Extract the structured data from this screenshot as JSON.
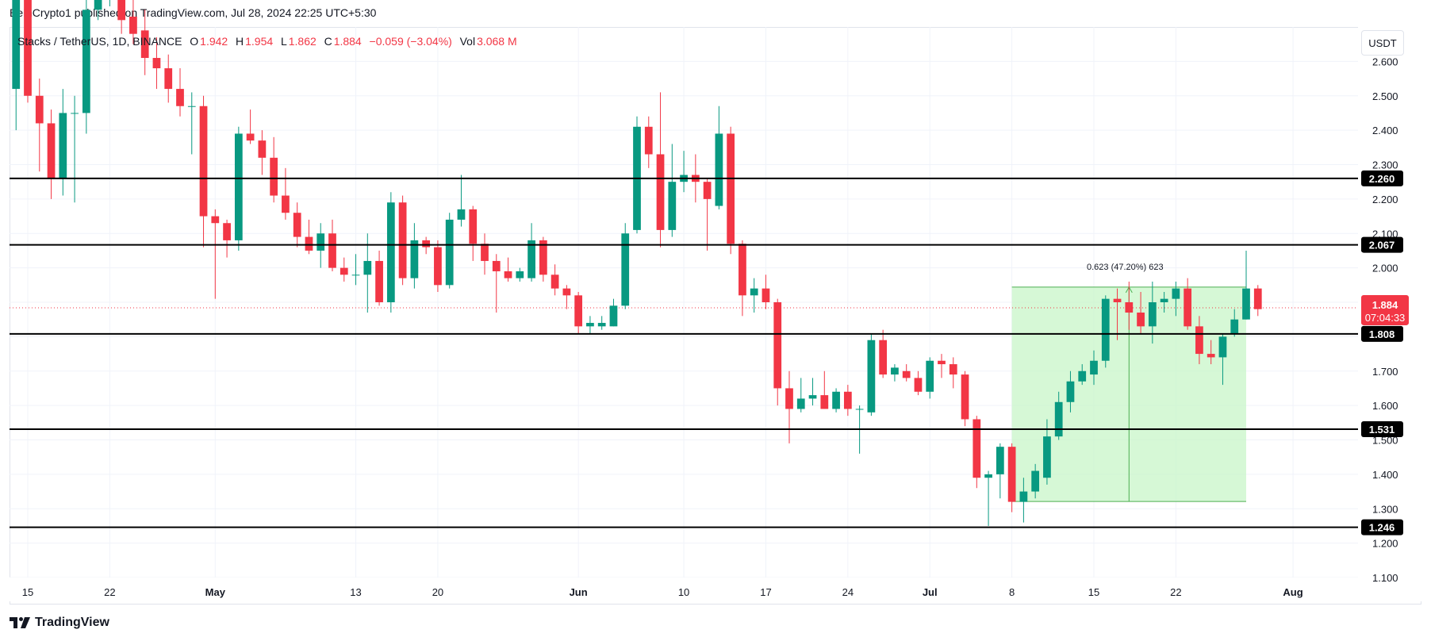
{
  "header": {
    "published": "BeInCrypto1 published on TradingView.com, Jul 28, 2024 22:25 UTC+5:30"
  },
  "legend": {
    "symbol": "Stacks / TetherUS, 1D, BINANCE",
    "o_label": "O",
    "o_value": "1.942",
    "h_label": "H",
    "h_value": "1.954",
    "l_label": "L",
    "l_value": "1.862",
    "c_label": "C",
    "c_value": "1.884",
    "change": "−0.059 (−3.04%)",
    "vol_label": "Vol",
    "vol_value": "3.068 M"
  },
  "currency_button": "USDT",
  "footer": {
    "brand": "TradingView"
  },
  "colors": {
    "up": "#089981",
    "down": "#f23645",
    "level": "#000000",
    "range_fill": "#c8f5c8",
    "range_stroke": "#4caf50",
    "grid": "#f0f3fa"
  },
  "chart_data": {
    "type": "candlestick",
    "ylim": [
      1.1,
      2.7
    ],
    "y_ticks": [
      "1.100",
      "1.200",
      "1.300",
      "1.400",
      "1.500",
      "1.600",
      "1.700",
      "1.800",
      "1.900",
      "2.000",
      "2.100",
      "2.200",
      "2.300",
      "2.400",
      "2.500",
      "2.600"
    ],
    "x_ticks": [
      {
        "label": "15",
        "date": "2024-04-15"
      },
      {
        "label": "22",
        "date": "2024-04-22"
      },
      {
        "label": "May",
        "date": "2024-05-01"
      },
      {
        "label": "13",
        "date": "2024-05-13"
      },
      {
        "label": "20",
        "date": "2024-05-20"
      },
      {
        "label": "Jun",
        "date": "2024-06-01"
      },
      {
        "label": "10",
        "date": "2024-06-10"
      },
      {
        "label": "17",
        "date": "2024-06-17"
      },
      {
        "label": "24",
        "date": "2024-06-24"
      },
      {
        "label": "Jul",
        "date": "2024-07-01"
      },
      {
        "label": "8",
        "date": "2024-07-08"
      },
      {
        "label": "15",
        "date": "2024-07-15"
      },
      {
        "label": "22",
        "date": "2024-07-22"
      },
      {
        "label": "Aug",
        "date": "2024-08-01"
      }
    ],
    "x_first_date": "2024-04-15",
    "x_last_date": "2024-07-28",
    "x_range_end": "2024-08-01",
    "candles": [
      {
        "date": "2024-04-14",
        "o": 2.52,
        "h": 2.78,
        "l": 2.4,
        "c": 2.78
      },
      {
        "date": "2024-04-15",
        "o": 2.8,
        "h": 2.85,
        "l": 2.48,
        "c": 2.5
      },
      {
        "date": "2024-04-16",
        "o": 2.5,
        "h": 2.55,
        "l": 2.28,
        "c": 2.42
      },
      {
        "date": "2024-04-17",
        "o": 2.42,
        "h": 2.46,
        "l": 2.2,
        "c": 2.26
      },
      {
        "date": "2024-04-18",
        "o": 2.26,
        "h": 2.52,
        "l": 2.21,
        "c": 2.45
      },
      {
        "date": "2024-04-19",
        "o": 2.45,
        "h": 2.5,
        "l": 2.19,
        "c": 2.45
      },
      {
        "date": "2024-04-20",
        "o": 2.45,
        "h": 2.8,
        "l": 2.39,
        "c": 2.75
      },
      {
        "date": "2024-04-21",
        "o": 2.75,
        "h": 2.9,
        "l": 2.72,
        "c": 2.84
      },
      {
        "date": "2024-04-22",
        "o": 2.84,
        "h": 2.88,
        "l": 2.76,
        "c": 2.85
      },
      {
        "date": "2024-04-23",
        "o": 2.86,
        "h": 2.9,
        "l": 2.68,
        "c": 2.72
      },
      {
        "date": "2024-04-24",
        "o": 2.73,
        "h": 2.86,
        "l": 2.65,
        "c": 2.68
      },
      {
        "date": "2024-04-25",
        "o": 2.69,
        "h": 2.75,
        "l": 2.56,
        "c": 2.61
      },
      {
        "date": "2024-04-26",
        "o": 2.61,
        "h": 2.67,
        "l": 2.52,
        "c": 2.58
      },
      {
        "date": "2024-04-27",
        "o": 2.58,
        "h": 2.62,
        "l": 2.48,
        "c": 2.52
      },
      {
        "date": "2024-04-28",
        "o": 2.52,
        "h": 2.58,
        "l": 2.44,
        "c": 2.47
      },
      {
        "date": "2024-04-29",
        "o": 2.47,
        "h": 2.51,
        "l": 2.33,
        "c": 2.47
      },
      {
        "date": "2024-04-30",
        "o": 2.47,
        "h": 2.5,
        "l": 2.06,
        "c": 2.15
      },
      {
        "date": "2024-05-01",
        "o": 2.15,
        "h": 2.17,
        "l": 1.91,
        "c": 2.13
      },
      {
        "date": "2024-05-02",
        "o": 2.13,
        "h": 2.14,
        "l": 2.03,
        "c": 2.08
      },
      {
        "date": "2024-05-03",
        "o": 2.08,
        "h": 2.41,
        "l": 2.05,
        "c": 2.39
      },
      {
        "date": "2024-05-04",
        "o": 2.39,
        "h": 2.46,
        "l": 2.36,
        "c": 2.37
      },
      {
        "date": "2024-05-05",
        "o": 2.37,
        "h": 2.4,
        "l": 2.27,
        "c": 2.32
      },
      {
        "date": "2024-05-06",
        "o": 2.32,
        "h": 2.38,
        "l": 2.19,
        "c": 2.21
      },
      {
        "date": "2024-05-07",
        "o": 2.21,
        "h": 2.29,
        "l": 2.14,
        "c": 2.16
      },
      {
        "date": "2024-05-08",
        "o": 2.16,
        "h": 2.19,
        "l": 2.06,
        "c": 2.09
      },
      {
        "date": "2024-05-09",
        "o": 2.09,
        "h": 2.14,
        "l": 2.04,
        "c": 2.05
      },
      {
        "date": "2024-05-10",
        "o": 2.05,
        "h": 2.13,
        "l": 2.0,
        "c": 2.1
      },
      {
        "date": "2024-05-11",
        "o": 2.1,
        "h": 2.14,
        "l": 1.99,
        "c": 2.0
      },
      {
        "date": "2024-05-12",
        "o": 2.0,
        "h": 2.03,
        "l": 1.96,
        "c": 1.98
      },
      {
        "date": "2024-05-13",
        "o": 1.98,
        "h": 2.04,
        "l": 1.95,
        "c": 1.98
      },
      {
        "date": "2024-05-14",
        "o": 1.98,
        "h": 2.1,
        "l": 1.87,
        "c": 2.02
      },
      {
        "date": "2024-05-15",
        "o": 2.02,
        "h": 2.05,
        "l": 1.89,
        "c": 1.9
      },
      {
        "date": "2024-05-16",
        "o": 1.9,
        "h": 2.22,
        "l": 1.87,
        "c": 2.19
      },
      {
        "date": "2024-05-17",
        "o": 2.19,
        "h": 2.21,
        "l": 1.95,
        "c": 1.97
      },
      {
        "date": "2024-05-18",
        "o": 1.97,
        "h": 2.13,
        "l": 1.94,
        "c": 2.08
      },
      {
        "date": "2024-05-19",
        "o": 2.08,
        "h": 2.09,
        "l": 2.04,
        "c": 2.06
      },
      {
        "date": "2024-05-20",
        "o": 2.06,
        "h": 2.08,
        "l": 1.93,
        "c": 1.95
      },
      {
        "date": "2024-05-21",
        "o": 1.95,
        "h": 2.16,
        "l": 1.94,
        "c": 2.14
      },
      {
        "date": "2024-05-22",
        "o": 2.14,
        "h": 2.27,
        "l": 2.12,
        "c": 2.17
      },
      {
        "date": "2024-05-23",
        "o": 2.17,
        "h": 2.18,
        "l": 2.02,
        "c": 2.07
      },
      {
        "date": "2024-05-24",
        "o": 2.07,
        "h": 2.1,
        "l": 1.98,
        "c": 2.02
      },
      {
        "date": "2024-05-25",
        "o": 2.02,
        "h": 2.04,
        "l": 1.87,
        "c": 1.99
      },
      {
        "date": "2024-05-26",
        "o": 1.99,
        "h": 2.03,
        "l": 1.96,
        "c": 1.97
      },
      {
        "date": "2024-05-27",
        "o": 1.97,
        "h": 2.0,
        "l": 1.96,
        "c": 1.99
      },
      {
        "date": "2024-05-28",
        "o": 1.97,
        "h": 2.13,
        "l": 1.96,
        "c": 2.08
      },
      {
        "date": "2024-05-29",
        "o": 2.08,
        "h": 2.09,
        "l": 1.96,
        "c": 1.98
      },
      {
        "date": "2024-05-30",
        "o": 1.98,
        "h": 2.01,
        "l": 1.92,
        "c": 1.94
      },
      {
        "date": "2024-05-31",
        "o": 1.94,
        "h": 1.95,
        "l": 1.88,
        "c": 1.92
      },
      {
        "date": "2024-06-01",
        "o": 1.92,
        "h": 1.93,
        "l": 1.81,
        "c": 1.83
      },
      {
        "date": "2024-06-02",
        "o": 1.83,
        "h": 1.86,
        "l": 1.81,
        "c": 1.84
      },
      {
        "date": "2024-06-03",
        "o": 1.83,
        "h": 1.86,
        "l": 1.82,
        "c": 1.84
      },
      {
        "date": "2024-06-04",
        "o": 1.83,
        "h": 1.91,
        "l": 1.83,
        "c": 1.89
      },
      {
        "date": "2024-06-05",
        "o": 1.89,
        "h": 2.13,
        "l": 1.88,
        "c": 2.1
      },
      {
        "date": "2024-06-06",
        "o": 2.11,
        "h": 2.44,
        "l": 2.1,
        "c": 2.41
      },
      {
        "date": "2024-06-07",
        "o": 2.41,
        "h": 2.44,
        "l": 2.29,
        "c": 2.33
      },
      {
        "date": "2024-06-08",
        "o": 2.33,
        "h": 2.51,
        "l": 2.06,
        "c": 2.11
      },
      {
        "date": "2024-06-09",
        "o": 2.11,
        "h": 2.36,
        "l": 2.09,
        "c": 2.25
      },
      {
        "date": "2024-06-10",
        "o": 2.25,
        "h": 2.34,
        "l": 2.22,
        "c": 2.27
      },
      {
        "date": "2024-06-11",
        "o": 2.27,
        "h": 2.33,
        "l": 2.19,
        "c": 2.25
      },
      {
        "date": "2024-06-12",
        "o": 2.25,
        "h": 2.26,
        "l": 2.05,
        "c": 2.2
      },
      {
        "date": "2024-06-13",
        "o": 2.18,
        "h": 2.47,
        "l": 2.17,
        "c": 2.39
      },
      {
        "date": "2024-06-14",
        "o": 2.39,
        "h": 2.41,
        "l": 2.04,
        "c": 2.07
      },
      {
        "date": "2024-06-15",
        "o": 2.07,
        "h": 2.08,
        "l": 1.86,
        "c": 1.92
      },
      {
        "date": "2024-06-16",
        "o": 1.92,
        "h": 1.97,
        "l": 1.87,
        "c": 1.94
      },
      {
        "date": "2024-06-17",
        "o": 1.94,
        "h": 1.98,
        "l": 1.88,
        "c": 1.9
      },
      {
        "date": "2024-06-18",
        "o": 1.9,
        "h": 1.91,
        "l": 1.6,
        "c": 1.65
      },
      {
        "date": "2024-06-19",
        "o": 1.65,
        "h": 1.7,
        "l": 1.49,
        "c": 1.59
      },
      {
        "date": "2024-06-20",
        "o": 1.59,
        "h": 1.68,
        "l": 1.58,
        "c": 1.62
      },
      {
        "date": "2024-06-21",
        "o": 1.62,
        "h": 1.68,
        "l": 1.6,
        "c": 1.63
      },
      {
        "date": "2024-06-22",
        "o": 1.63,
        "h": 1.7,
        "l": 1.59,
        "c": 1.59
      },
      {
        "date": "2024-06-23",
        "o": 1.59,
        "h": 1.65,
        "l": 1.58,
        "c": 1.64
      },
      {
        "date": "2024-06-24",
        "o": 1.64,
        "h": 1.66,
        "l": 1.57,
        "c": 1.59
      },
      {
        "date": "2024-06-25",
        "o": 1.59,
        "h": 1.6,
        "l": 1.46,
        "c": 1.59
      },
      {
        "date": "2024-06-26",
        "o": 1.58,
        "h": 1.81,
        "l": 1.57,
        "c": 1.79
      },
      {
        "date": "2024-06-27",
        "o": 1.79,
        "h": 1.82,
        "l": 1.68,
        "c": 1.69
      },
      {
        "date": "2024-06-28",
        "o": 1.69,
        "h": 1.72,
        "l": 1.67,
        "c": 1.71
      },
      {
        "date": "2024-06-29",
        "o": 1.7,
        "h": 1.72,
        "l": 1.67,
        "c": 1.68
      },
      {
        "date": "2024-06-30",
        "o": 1.68,
        "h": 1.7,
        "l": 1.63,
        "c": 1.64
      },
      {
        "date": "2024-07-01",
        "o": 1.64,
        "h": 1.74,
        "l": 1.62,
        "c": 1.73
      },
      {
        "date": "2024-07-02",
        "o": 1.73,
        "h": 1.75,
        "l": 1.68,
        "c": 1.72
      },
      {
        "date": "2024-07-03",
        "o": 1.72,
        "h": 1.74,
        "l": 1.65,
        "c": 1.69
      },
      {
        "date": "2024-07-04",
        "o": 1.69,
        "h": 1.7,
        "l": 1.54,
        "c": 1.56
      },
      {
        "date": "2024-07-05",
        "o": 1.56,
        "h": 1.57,
        "l": 1.36,
        "c": 1.39
      },
      {
        "date": "2024-07-06",
        "o": 1.39,
        "h": 1.41,
        "l": 1.25,
        "c": 1.4
      },
      {
        "date": "2024-07-07",
        "o": 1.4,
        "h": 1.49,
        "l": 1.33,
        "c": 1.48
      },
      {
        "date": "2024-07-08",
        "o": 1.48,
        "h": 1.49,
        "l": 1.29,
        "c": 1.32
      },
      {
        "date": "2024-07-09",
        "o": 1.32,
        "h": 1.39,
        "l": 1.26,
        "c": 1.35
      },
      {
        "date": "2024-07-10",
        "o": 1.35,
        "h": 1.43,
        "l": 1.33,
        "c": 1.41
      },
      {
        "date": "2024-07-11",
        "o": 1.39,
        "h": 1.56,
        "l": 1.37,
        "c": 1.51
      },
      {
        "date": "2024-07-12",
        "o": 1.51,
        "h": 1.64,
        "l": 1.5,
        "c": 1.61
      },
      {
        "date": "2024-07-13",
        "o": 1.61,
        "h": 1.7,
        "l": 1.58,
        "c": 1.67
      },
      {
        "date": "2024-07-14",
        "o": 1.67,
        "h": 1.72,
        "l": 1.66,
        "c": 1.7
      },
      {
        "date": "2024-07-15",
        "o": 1.69,
        "h": 1.76,
        "l": 1.66,
        "c": 1.73
      },
      {
        "date": "2024-07-16",
        "o": 1.73,
        "h": 1.92,
        "l": 1.71,
        "c": 1.91
      },
      {
        "date": "2024-07-17",
        "o": 1.91,
        "h": 1.94,
        "l": 1.79,
        "c": 1.9
      },
      {
        "date": "2024-07-18",
        "o": 1.9,
        "h": 1.96,
        "l": 1.82,
        "c": 1.87
      },
      {
        "date": "2024-07-19",
        "o": 1.87,
        "h": 1.93,
        "l": 1.81,
        "c": 1.83
      },
      {
        "date": "2024-07-20",
        "o": 1.83,
        "h": 1.96,
        "l": 1.78,
        "c": 1.9
      },
      {
        "date": "2024-07-21",
        "o": 1.9,
        "h": 1.93,
        "l": 1.87,
        "c": 1.91
      },
      {
        "date": "2024-07-22",
        "o": 1.91,
        "h": 1.96,
        "l": 1.86,
        "c": 1.94
      },
      {
        "date": "2024-07-23",
        "o": 1.94,
        "h": 1.97,
        "l": 1.82,
        "c": 1.83
      },
      {
        "date": "2024-07-24",
        "o": 1.83,
        "h": 1.86,
        "l": 1.72,
        "c": 1.75
      },
      {
        "date": "2024-07-25",
        "o": 1.75,
        "h": 1.79,
        "l": 1.72,
        "c": 1.74
      },
      {
        "date": "2024-07-26",
        "o": 1.74,
        "h": 1.81,
        "l": 1.66,
        "c": 1.8
      },
      {
        "date": "2024-07-27",
        "o": 1.81,
        "h": 1.88,
        "l": 1.8,
        "c": 1.85
      },
      {
        "date": "2024-07-28",
        "o": 1.85,
        "h": 2.05,
        "l": 1.85,
        "c": 1.94
      },
      {
        "date": "2024-07-29",
        "o": 1.94,
        "h": 1.95,
        "l": 1.86,
        "c": 1.88
      }
    ],
    "horizontal_levels": [
      {
        "value": 2.26,
        "label": "2.260"
      },
      {
        "value": 2.067,
        "label": "2.067"
      },
      {
        "value": 1.808,
        "label": "1.808"
      },
      {
        "value": 1.531,
        "label": "1.531"
      },
      {
        "value": 1.246,
        "label": "1.246"
      }
    ],
    "current_price": {
      "value": 1.884,
      "label": "1.884",
      "countdown": "07:04:33"
    },
    "range_measure": {
      "from_date": "2024-07-08",
      "to_date": "2024-07-28",
      "low": 1.321,
      "high": 1.944,
      "label": "0.623 (47.20%) 623",
      "arrow_date": "2024-07-18"
    }
  }
}
